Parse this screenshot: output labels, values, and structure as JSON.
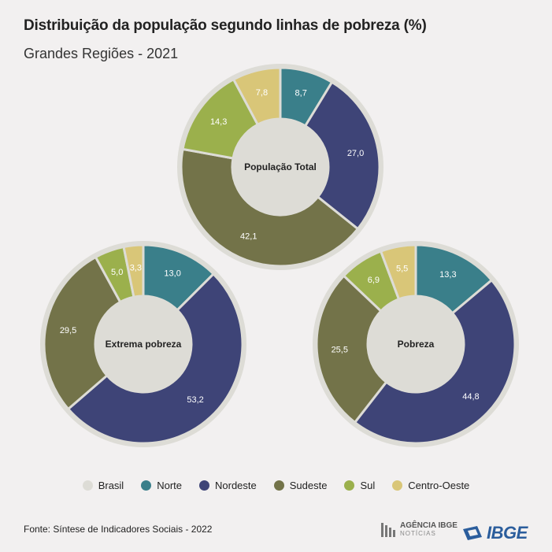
{
  "header": {
    "title": "Distribuição da população segundo linhas de pobreza (%)",
    "subtitle": "Grandes Regiões - 2021"
  },
  "colors": {
    "Brasil": "#dddcd6",
    "Norte": "#3a7f8a",
    "Nordeste": "#3e4477",
    "Sudeste": "#737349",
    "Sul": "#9bb04c",
    "Centro-Oeste": "#d9c678",
    "ring": "#dddcd6"
  },
  "chart_data": [
    {
      "type": "pie",
      "title": "População Total",
      "categories": [
        "Norte",
        "Nordeste",
        "Sudeste",
        "Sul",
        "Centro-Oeste"
      ],
      "values": [
        8.7,
        27.0,
        42.1,
        14.3,
        7.8
      ],
      "labels": [
        "8,7",
        "27,0",
        "42,1",
        "14,3",
        "7,8"
      ]
    },
    {
      "type": "pie",
      "title": "Extrema pobreza",
      "categories": [
        "Norte",
        "Nordeste",
        "Sudeste",
        "Sul",
        "Centro-Oeste"
      ],
      "values": [
        13.0,
        53.2,
        29.5,
        5.0,
        3.3
      ],
      "labels": [
        "13,0",
        "53,2",
        "29,5",
        "5,0",
        "3,3"
      ]
    },
    {
      "type": "pie",
      "title": "Pobreza",
      "categories": [
        "Norte",
        "Nordeste",
        "Sudeste",
        "Sul",
        "Centro-Oeste"
      ],
      "values": [
        13.3,
        44.8,
        25.5,
        6.9,
        5.5
      ],
      "labels": [
        "13,3",
        "44,8",
        "25,5",
        "6,9",
        "5,5"
      ]
    }
  ],
  "legend": {
    "items": [
      "Brasil",
      "Norte",
      "Nordeste",
      "Sudeste",
      "Sul",
      "Centro-Oeste"
    ],
    "placement": "bottom"
  },
  "footer": {
    "source": "Fonte: Síntese de Indicadores Sociais - 2022",
    "agencia_line1": "AGÊNCIA IBGE",
    "agencia_line2": "NOTÍCIAS",
    "ibge": "IBGE"
  }
}
